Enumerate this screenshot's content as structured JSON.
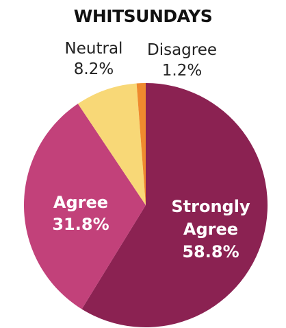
{
  "chart_data": {
    "type": "pie",
    "title": "WHITSUNDAYS",
    "slices": [
      {
        "label": "Strongly Agree",
        "value": 58.8,
        "value_label": "58.8%",
        "color": "#8b2252"
      },
      {
        "label": "Agree",
        "value": 31.8,
        "value_label": "31.8%",
        "color": "#c2417a"
      },
      {
        "label": "Neutral",
        "value": 8.2,
        "value_label": "8.2%",
        "color": "#f8d877"
      },
      {
        "label": "Disagree",
        "value": 1.2,
        "value_label": "1.2%",
        "color": "#ef8a2e"
      }
    ],
    "start_angle": "12 o'clock",
    "direction": "clockwise",
    "label_placement": {
      "Strongly Agree": "inside",
      "Agree": "inside",
      "Neutral": "outside-top",
      "Disagree": "outside-top"
    }
  }
}
